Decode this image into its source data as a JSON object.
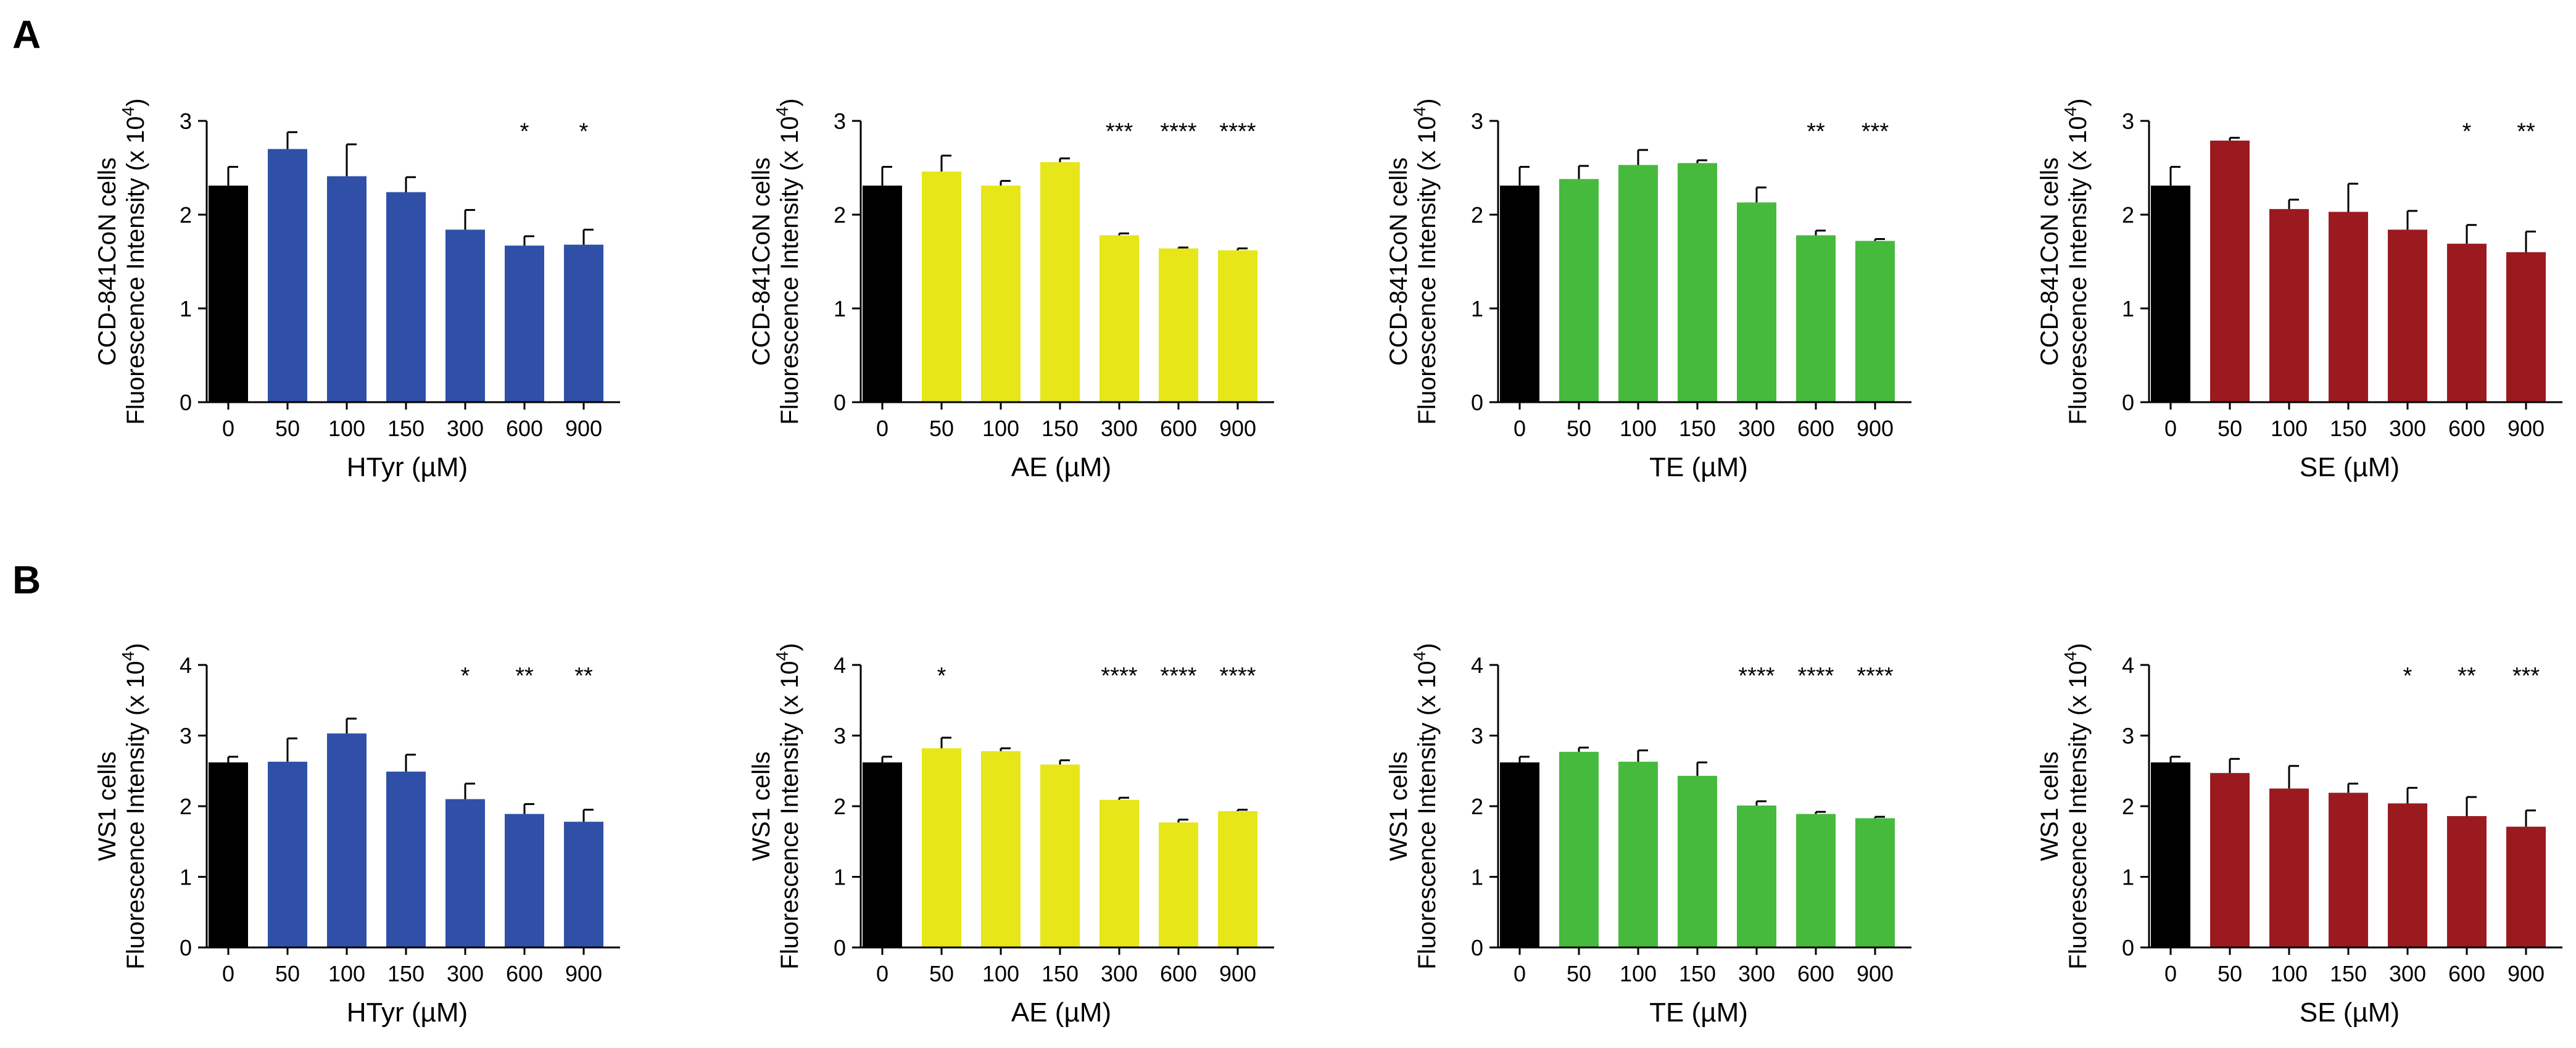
{
  "figure": {
    "panels": [
      {
        "letter": "A",
        "ylabel_line1": "CCD-841CoN cells",
        "ylabel_line2": "Fluorescence Intensity (x 10",
        "ylabel_exp": "4",
        "ylabel_close": ")"
      },
      {
        "letter": "B",
        "ylabel_line1": "WS1 cells",
        "ylabel_line2": "Fluorescence Intensity (x 10",
        "ylabel_exp": "4",
        "ylabel_close": ")"
      }
    ]
  },
  "chart_data": [
    {
      "type": "bar",
      "panel": "A",
      "row": 0,
      "col": 0,
      "xlabel": "HTyr (µM)",
      "ylim": [
        0,
        3
      ],
      "yticks": [
        0,
        1,
        2,
        3
      ],
      "categories": [
        "0",
        "50",
        "100",
        "150",
        "300",
        "600",
        "900"
      ],
      "values": [
        2.31,
        2.7,
        2.41,
        2.24,
        1.84,
        1.67,
        1.68
      ],
      "errors": [
        0.2,
        0.18,
        0.34,
        0.16,
        0.21,
        0.1,
        0.16
      ],
      "significance": [
        "",
        "",
        "",
        "",
        "",
        "*",
        "*"
      ],
      "colors": [
        "#000000",
        "#3050a8",
        "#3050a8",
        "#3050a8",
        "#3050a8",
        "#3050a8",
        "#3050a8"
      ]
    },
    {
      "type": "bar",
      "panel": "A",
      "row": 0,
      "col": 1,
      "xlabel": "AE (µM)",
      "ylim": [
        0,
        3
      ],
      "yticks": [
        0,
        1,
        2,
        3
      ],
      "categories": [
        "0",
        "50",
        "100",
        "150",
        "300",
        "600",
        "900"
      ],
      "values": [
        2.31,
        2.46,
        2.31,
        2.56,
        1.78,
        1.64,
        1.62
      ],
      "errors": [
        0.2,
        0.17,
        0.05,
        0.04,
        0.02,
        0.01,
        0.02
      ],
      "significance": [
        "",
        "",
        "",
        "",
        "***",
        "****",
        "****"
      ],
      "colors": [
        "#000000",
        "#e6e619",
        "#e6e619",
        "#e6e619",
        "#e6e619",
        "#e6e619",
        "#e6e619"
      ]
    },
    {
      "type": "bar",
      "panel": "A",
      "row": 0,
      "col": 2,
      "xlabel": "TE (µM)",
      "ylim": [
        0,
        3
      ],
      "yticks": [
        0,
        1,
        2,
        3
      ],
      "categories": [
        "0",
        "50",
        "100",
        "150",
        "300",
        "600",
        "900"
      ],
      "values": [
        2.31,
        2.38,
        2.53,
        2.55,
        2.13,
        1.78,
        1.72
      ],
      "errors": [
        0.2,
        0.14,
        0.16,
        0.03,
        0.16,
        0.05,
        0.02
      ],
      "significance": [
        "",
        "",
        "",
        "",
        "",
        "**",
        "***"
      ],
      "colors": [
        "#000000",
        "#46ba3c",
        "#46ba3c",
        "#46ba3c",
        "#46ba3c",
        "#46ba3c",
        "#46ba3c"
      ]
    },
    {
      "type": "bar",
      "panel": "A",
      "row": 0,
      "col": 3,
      "xlabel": "SE (µM)",
      "ylim": [
        0,
        3
      ],
      "yticks": [
        0,
        1,
        2,
        3
      ],
      "categories": [
        "0",
        "50",
        "100",
        "150",
        "300",
        "600",
        "900"
      ],
      "values": [
        2.31,
        2.79,
        2.06,
        2.03,
        1.84,
        1.69,
        1.6
      ],
      "errors": [
        0.2,
        0.03,
        0.1,
        0.3,
        0.2,
        0.2,
        0.22
      ],
      "significance": [
        "",
        "",
        "",
        "",
        "",
        "*",
        "**"
      ],
      "colors": [
        "#000000",
        "#9b1a20",
        "#9b1a20",
        "#9b1a20",
        "#9b1a20",
        "#9b1a20",
        "#9b1a20"
      ]
    },
    {
      "type": "bar",
      "panel": "B",
      "row": 1,
      "col": 0,
      "xlabel": "HTyr (µM)",
      "ylim": [
        0,
        4
      ],
      "yticks": [
        0,
        1,
        2,
        3,
        4
      ],
      "categories": [
        "0",
        "50",
        "100",
        "150",
        "300",
        "600",
        "900"
      ],
      "values": [
        2.62,
        2.63,
        3.03,
        2.49,
        2.1,
        1.89,
        1.78
      ],
      "errors": [
        0.08,
        0.33,
        0.21,
        0.24,
        0.22,
        0.14,
        0.17
      ],
      "significance": [
        "",
        "",
        "",
        "",
        "*",
        "**",
        "**"
      ],
      "colors": [
        "#000000",
        "#3050a8",
        "#3050a8",
        "#3050a8",
        "#3050a8",
        "#3050a8",
        "#3050a8"
      ]
    },
    {
      "type": "bar",
      "panel": "B",
      "row": 1,
      "col": 1,
      "xlabel": "AE (µM)",
      "ylim": [
        0,
        4
      ],
      "yticks": [
        0,
        1,
        2,
        3,
        4
      ],
      "categories": [
        "0",
        "50",
        "100",
        "150",
        "300",
        "600",
        "900"
      ],
      "values": [
        2.62,
        2.82,
        2.78,
        2.59,
        2.09,
        1.77,
        1.93
      ],
      "errors": [
        0.08,
        0.15,
        0.04,
        0.06,
        0.03,
        0.04,
        0.02
      ],
      "significance": [
        "",
        "*",
        "",
        "",
        "****",
        "****",
        "****"
      ],
      "colors": [
        "#000000",
        "#e6e619",
        "#e6e619",
        "#e6e619",
        "#e6e619",
        "#e6e619",
        "#e6e619"
      ]
    },
    {
      "type": "bar",
      "panel": "B",
      "row": 1,
      "col": 2,
      "xlabel": "TE (µM)",
      "ylim": [
        0,
        4
      ],
      "yticks": [
        0,
        1,
        2,
        3,
        4
      ],
      "categories": [
        "0",
        "50",
        "100",
        "150",
        "300",
        "600",
        "900"
      ],
      "values": [
        2.62,
        2.77,
        2.63,
        2.43,
        2.01,
        1.89,
        1.83
      ],
      "errors": [
        0.08,
        0.06,
        0.16,
        0.19,
        0.06,
        0.03,
        0.02
      ],
      "significance": [
        "",
        "",
        "",
        "",
        "****",
        "****",
        "****"
      ],
      "colors": [
        "#000000",
        "#46ba3c",
        "#46ba3c",
        "#46ba3c",
        "#46ba3c",
        "#46ba3c",
        "#46ba3c"
      ]
    },
    {
      "type": "bar",
      "panel": "B",
      "row": 1,
      "col": 3,
      "xlabel": "SE (µM)",
      "ylim": [
        0,
        4
      ],
      "yticks": [
        0,
        1,
        2,
        3,
        4
      ],
      "categories": [
        "0",
        "50",
        "100",
        "150",
        "300",
        "600",
        "900"
      ],
      "values": [
        2.62,
        2.47,
        2.25,
        2.19,
        2.04,
        1.86,
        1.71
      ],
      "errors": [
        0.08,
        0.2,
        0.32,
        0.13,
        0.22,
        0.27,
        0.23
      ],
      "significance": [
        "",
        "",
        "",
        "",
        "*",
        "**",
        "***"
      ],
      "colors": [
        "#000000",
        "#9b1a20",
        "#9b1a20",
        "#9b1a20",
        "#9b1a20",
        "#9b1a20",
        "#9b1a20"
      ]
    }
  ]
}
